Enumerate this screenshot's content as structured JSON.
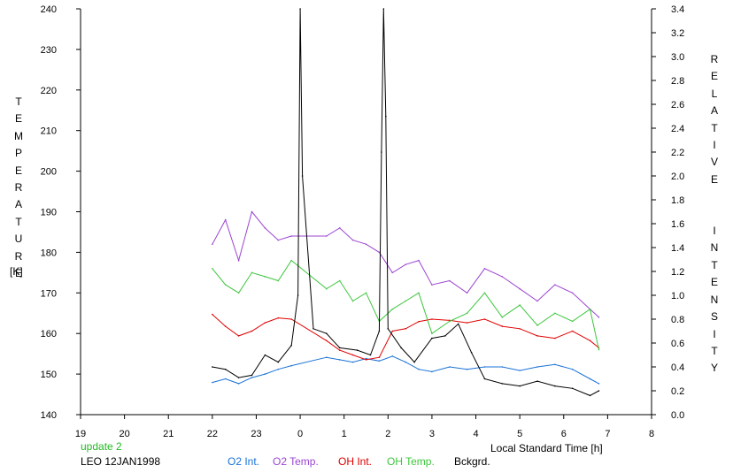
{
  "chart_data": {
    "type": "line",
    "xlabel": "Local Standard Time [h]",
    "x_ticks": [
      "19",
      "20",
      "21",
      "22",
      "23",
      "0",
      "1",
      "2",
      "3",
      "4",
      "5",
      "6",
      "7",
      "8"
    ],
    "x_range": [
      19,
      32
    ],
    "left_axis": {
      "label_letters": [
        "T",
        "E",
        "M",
        "P",
        "E",
        "R",
        "A",
        "T",
        "U",
        "R",
        "E"
      ],
      "unit": "[K]",
      "ylim": [
        140,
        240
      ],
      "ticks": [
        "140",
        "150",
        "160",
        "170",
        "180",
        "190",
        "200",
        "210",
        "220",
        "230",
        "240"
      ]
    },
    "right_axis": {
      "label_letters": [
        "R",
        "E",
        "L",
        "A",
        "T",
        "I",
        "V",
        "E",
        "",
        "",
        "I",
        "N",
        "T",
        "E",
        "N",
        "S",
        "I",
        "T",
        "Y"
      ],
      "ylim": [
        0.0,
        3.4
      ],
      "ticks": [
        "0.0",
        "0.2",
        "0.4",
        "0.6",
        "0.8",
        "1.0",
        "1.2",
        "1.4",
        "1.6",
        "1.8",
        "2.0",
        "2.2",
        "2.4",
        "2.6",
        "2.8",
        "3.0",
        "3.2",
        "3.4"
      ]
    },
    "series": [
      {
        "name": "O2 Int.",
        "axis": "right",
        "color": "#1a72d6",
        "x": [
          22.0,
          22.3,
          22.6,
          22.9,
          23.2,
          23.5,
          23.8,
          24.6,
          24.9,
          25.2,
          25.5,
          25.8,
          26.1,
          26.4,
          26.7,
          27.0,
          27.4,
          27.8,
          28.2,
          28.6,
          29.0,
          29.4,
          29.8,
          30.2,
          30.6,
          30.8
        ],
        "y": [
          0.27,
          0.3,
          0.26,
          0.31,
          0.34,
          0.38,
          0.41,
          0.48,
          0.46,
          0.44,
          0.47,
          0.45,
          0.49,
          0.44,
          0.38,
          0.36,
          0.4,
          0.38,
          0.4,
          0.4,
          0.37,
          0.4,
          0.42,
          0.38,
          0.3,
          0.26
        ]
      },
      {
        "name": "O2 Temp.",
        "axis": "left",
        "color": "#9b45d1",
        "x": [
          22.0,
          22.3,
          22.6,
          22.9,
          23.2,
          23.5,
          23.8,
          24.6,
          24.9,
          25.2,
          25.5,
          25.8,
          26.1,
          26.4,
          26.7,
          27.0,
          27.4,
          27.8,
          28.2,
          28.6,
          29.0,
          29.4,
          29.8,
          30.2,
          30.6,
          30.8
        ],
        "y": [
          182,
          188,
          178,
          190,
          186,
          183,
          184,
          184,
          186,
          183,
          182,
          180,
          175,
          177,
          178,
          172,
          173,
          170,
          176,
          174,
          171,
          168,
          172,
          170,
          166,
          164
        ]
      },
      {
        "name": "OH Int.",
        "axis": "right",
        "color": "#e00000",
        "x": [
          22.0,
          22.3,
          22.6,
          22.9,
          23.2,
          23.5,
          23.8,
          24.6,
          24.9,
          25.2,
          25.5,
          25.8,
          26.1,
          26.4,
          26.7,
          27.0,
          27.4,
          27.8,
          28.2,
          28.6,
          29.0,
          29.4,
          29.8,
          30.2,
          30.6,
          30.8
        ],
        "y": [
          0.84,
          0.74,
          0.66,
          0.7,
          0.77,
          0.81,
          0.8,
          0.62,
          0.54,
          0.5,
          0.46,
          0.48,
          0.7,
          0.72,
          0.78,
          0.8,
          0.79,
          0.77,
          0.8,
          0.74,
          0.72,
          0.66,
          0.64,
          0.7,
          0.62,
          0.56
        ]
      },
      {
        "name": "OH Temp.",
        "axis": "left",
        "color": "#3cc63c",
        "x": [
          22.0,
          22.3,
          22.6,
          22.9,
          23.2,
          23.5,
          23.8,
          24.6,
          24.9,
          25.2,
          25.5,
          25.8,
          26.1,
          26.4,
          26.7,
          27.0,
          27.4,
          27.8,
          28.2,
          28.6,
          29.0,
          29.4,
          29.8,
          30.2,
          30.6,
          30.8
        ],
        "y": [
          176,
          172,
          170,
          175,
          174,
          173,
          178,
          171,
          173,
          168,
          170,
          163,
          166,
          168,
          170,
          160,
          163,
          165,
          170,
          164,
          167,
          162,
          165,
          163,
          166,
          156
        ]
      },
      {
        "name": "Bckgrd.",
        "axis": "right",
        "color": "#000000",
        "x": [
          22.0,
          22.3,
          22.6,
          22.9,
          23.2,
          23.5,
          23.8,
          23.95,
          24.0,
          24.05,
          24.3,
          24.6,
          24.9,
          25.3,
          25.6,
          25.8,
          25.85,
          25.9,
          25.95,
          26.0,
          26.3,
          26.6,
          27.0,
          27.3,
          27.6,
          27.9,
          28.2,
          28.6,
          29.0,
          29.4,
          29.8,
          30.2,
          30.6,
          30.8
        ],
        "y": [
          0.4,
          0.38,
          0.31,
          0.33,
          0.5,
          0.44,
          0.58,
          1.0,
          3.4,
          2.0,
          0.72,
          0.68,
          0.56,
          0.54,
          0.5,
          0.7,
          2.2,
          3.4,
          2.5,
          0.72,
          0.56,
          0.44,
          0.64,
          0.66,
          0.76,
          0.52,
          0.3,
          0.26,
          0.24,
          0.28,
          0.24,
          0.22,
          0.16,
          0.2
        ]
      }
    ],
    "legend": [
      "O2 Int.",
      "O2 Temp.",
      "OH Int.",
      "OH Temp.",
      "Bckgrd."
    ],
    "legend_placement": "bottom"
  },
  "footer": {
    "update": "update 2",
    "station": "LEO 12JAN1998",
    "legend_labels": [
      "O2 Int.",
      "O2 Temp.",
      "OH Int.",
      "OH Temp.",
      "Bckgrd."
    ]
  },
  "colors": {
    "o2_int": "#1a72d6",
    "o2_temp": "#9b45d1",
    "oh_int": "#e00000",
    "oh_temp": "#3cc63c",
    "bckgrd": "#000000",
    "update_text": "#22bb22"
  }
}
